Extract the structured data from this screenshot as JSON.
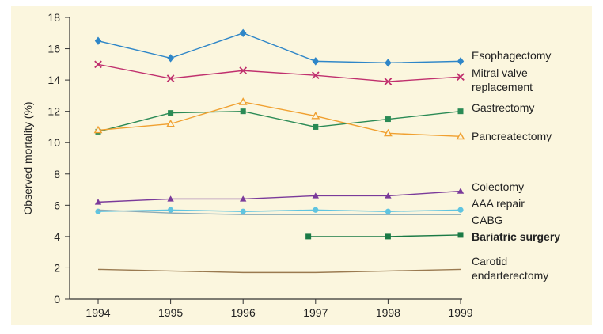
{
  "chart_data": {
    "type": "line",
    "title": "",
    "xlabel": "",
    "ylabel": "Observed mortality (%)",
    "ylim": [
      0,
      18
    ],
    "yticks": [
      0,
      2,
      4,
      6,
      8,
      10,
      12,
      14,
      16,
      18
    ],
    "xticks": [
      1994,
      1995,
      1996,
      1997,
      1998,
      1999
    ],
    "grid": false,
    "legend": "direct labels at right end of each line",
    "series": [
      {
        "name": "Esophagectomy",
        "label_lines": [
          "Esophagectomy"
        ],
        "color": "#2e86c8",
        "marker": "diamond",
        "x": [
          1994,
          1995,
          1996,
          1997,
          1998,
          1999
        ],
        "y": [
          16.5,
          15.4,
          17.0,
          15.2,
          15.1,
          15.2
        ]
      },
      {
        "name": "Mitral valve replacement",
        "label_lines": [
          "Mitral valve",
          "replacement"
        ],
        "color": "#c0306e",
        "marker": "x",
        "x": [
          1994,
          1995,
          1996,
          1997,
          1998,
          1999
        ],
        "y": [
          15.0,
          14.1,
          14.6,
          14.3,
          13.9,
          14.2
        ]
      },
      {
        "name": "Gastrectomy",
        "label_lines": [
          "Gastrectomy"
        ],
        "color": "#2a8a55",
        "marker": "square",
        "x": [
          1994,
          1995,
          1996,
          1997,
          1998,
          1999
        ],
        "y": [
          10.7,
          11.9,
          12.0,
          11.0,
          11.5,
          12.0
        ]
      },
      {
        "name": "Pancreatectomy",
        "label_lines": [
          "Pancreatectomy"
        ],
        "color": "#f0a030",
        "marker": "triangle-open",
        "x": [
          1994,
          1995,
          1996,
          1997,
          1998,
          1999
        ],
        "y": [
          10.8,
          11.2,
          12.6,
          11.7,
          10.6,
          10.4
        ]
      },
      {
        "name": "Colectomy",
        "label_lines": [
          "Colectomy"
        ],
        "color": "#7a3a9a",
        "marker": "triangle",
        "x": [
          1994,
          1995,
          1996,
          1997,
          1998,
          1999
        ],
        "y": [
          6.2,
          6.4,
          6.4,
          6.6,
          6.6,
          6.9
        ]
      },
      {
        "name": "AAA repair",
        "label_lines": [
          "AAA repair"
        ],
        "color": "#5fc4e0",
        "marker": "circle",
        "x": [
          1994,
          1995,
          1996,
          1997,
          1998,
          1999
        ],
        "y": [
          5.6,
          5.7,
          5.6,
          5.7,
          5.6,
          5.7
        ]
      },
      {
        "name": "CABG",
        "label_lines": [
          "CABG"
        ],
        "color": "#8aacb8",
        "marker": "none",
        "x": [
          1994,
          1995,
          1996,
          1997,
          1998,
          1999
        ],
        "y": [
          5.7,
          5.5,
          5.4,
          5.4,
          5.4,
          5.4
        ]
      },
      {
        "name": "Bariatric surgery",
        "label_lines": [
          "Bariatric surgery"
        ],
        "color": "#1a7a45",
        "marker": "square",
        "bold": true,
        "x": [
          1996.9,
          1998,
          1999
        ],
        "y": [
          4.0,
          4.0,
          4.1
        ]
      },
      {
        "name": "Carotid endarterectomy",
        "label_lines": [
          "Carotid",
          "endarterectomy"
        ],
        "color": "#9a7a50",
        "marker": "none",
        "x": [
          1994,
          1995,
          1996,
          1997,
          1998,
          1999
        ],
        "y": [
          1.9,
          1.8,
          1.7,
          1.7,
          1.8,
          1.9
        ]
      }
    ]
  }
}
